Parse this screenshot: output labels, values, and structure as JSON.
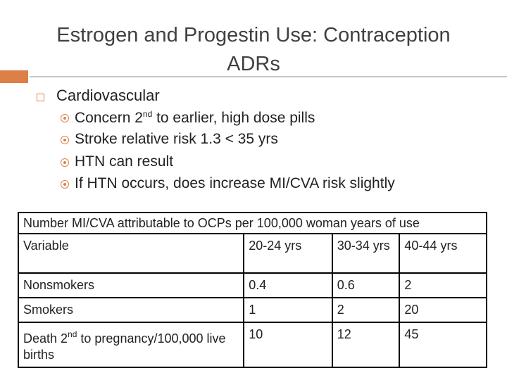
{
  "header": {
    "title": "Estrogen and Progestin Use: Contraception ADRs"
  },
  "bullets": {
    "main": "Cardiovascular",
    "items": [
      {
        "before": "Concern 2",
        "sup": "nd",
        "after": " to earlier, high dose pills"
      },
      {
        "text": "Stroke relative risk 1.3 < 35 yrs"
      },
      {
        "text": "HTN can result"
      },
      {
        "text": "If HTN occurs, does increase MI/CVA risk slightly"
      }
    ]
  },
  "table": {
    "caption": "Number MI/CVA attributable to OCPs per 100,000 woman years of use",
    "columns": [
      "Variable",
      "20-24 yrs",
      "30-34 yrs",
      "40-44 yrs"
    ],
    "rows": [
      [
        {
          "text": "Nonsmokers"
        },
        "0.4",
        "0.6",
        "2"
      ],
      [
        {
          "text": "Smokers"
        },
        "1",
        "2",
        "20"
      ],
      [
        {
          "before": "Death 2",
          "sup": "nd",
          "after": " to pregnancy/100,000 live births"
        },
        "10",
        "12",
        "45"
      ]
    ]
  }
}
